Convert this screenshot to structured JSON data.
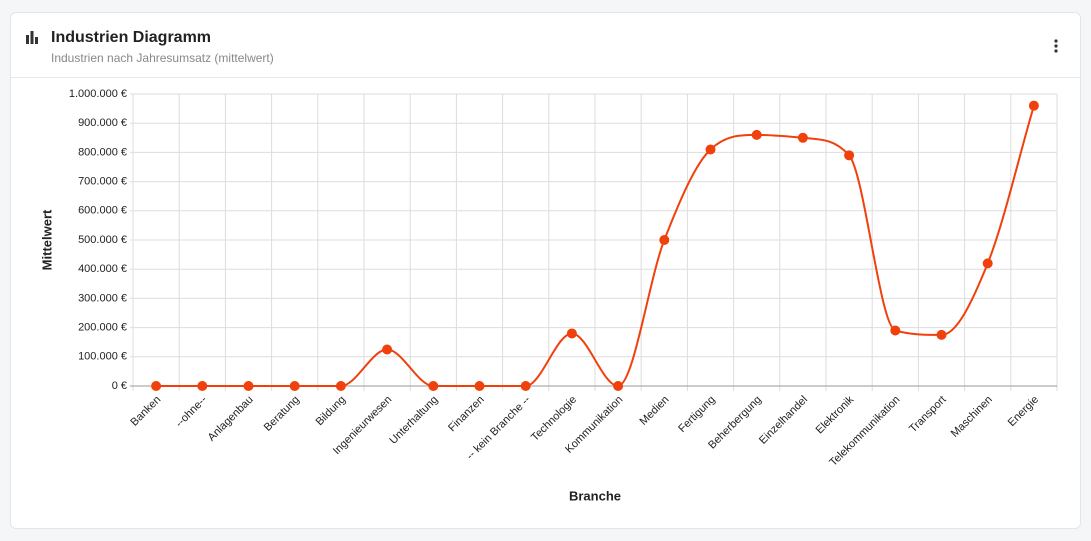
{
  "header": {
    "title": "Industrien Diagramm",
    "subtitle": "Industrien nach Jahresumsatz (mittelwert)"
  },
  "chart_data": {
    "type": "line",
    "smooth": true,
    "color": "#f0410c",
    "grid": true,
    "x_label": "Branche",
    "y_label": "Mittelwert",
    "categories": [
      "Banken",
      "--ohne--",
      "Anlagenbau",
      "Beratung",
      "Bildung",
      "Ingenieurwesen",
      "Unterhaltung",
      "Finanzen",
      "-- kein Branche --",
      "Technologie",
      "Kommunikation",
      "Medien",
      "Fertigung",
      "Beherbergung",
      "Einzelhandel",
      "Elektronik",
      "Telekommunikation",
      "Transport",
      "Maschinen",
      "Energie"
    ],
    "values": [
      0,
      0,
      0,
      0,
      0,
      125000,
      0,
      0,
      0,
      180000,
      0,
      500000,
      810000,
      860000,
      850000,
      790000,
      190000,
      175000,
      420000,
      960000
    ],
    "ylim": [
      0,
      1000000
    ],
    "yticks": [
      {
        "value": 0,
        "label": "0 €"
      },
      {
        "value": 100000,
        "label": "100.000 €"
      },
      {
        "value": 200000,
        "label": "200.000 €"
      },
      {
        "value": 300000,
        "label": "300.000 €"
      },
      {
        "value": 400000,
        "label": "400.000 €"
      },
      {
        "value": 500000,
        "label": "500.000 €"
      },
      {
        "value": 600000,
        "label": "600.000 €"
      },
      {
        "value": 700000,
        "label": "700.000 €"
      },
      {
        "value": 800000,
        "label": "800.000 €"
      },
      {
        "value": 900000,
        "label": "900.000 €"
      },
      {
        "value": 1000000,
        "label": "1.000.000 €"
      }
    ]
  }
}
